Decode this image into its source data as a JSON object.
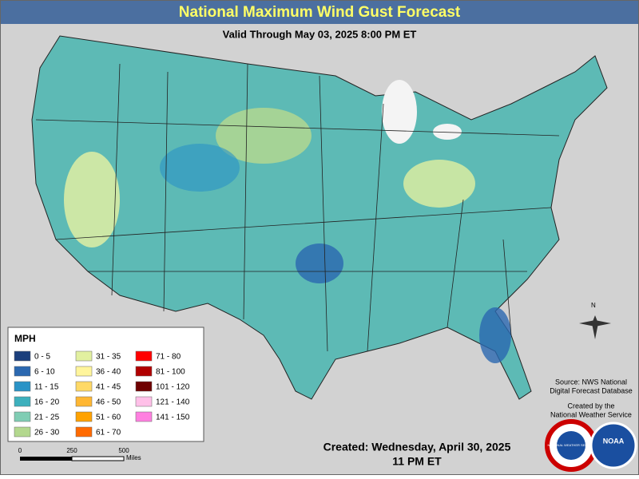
{
  "header": {
    "title": "National Maximum Wind Gust Forecast",
    "subtitle": "Valid Through May 03, 2025 8:00 PM ET"
  },
  "legend": {
    "title": "MPH",
    "items": [
      {
        "label": "0 - 5",
        "color": "#1b3f7c"
      },
      {
        "label": "6 - 10",
        "color": "#2b68b0"
      },
      {
        "label": "11 - 15",
        "color": "#2a93c6"
      },
      {
        "label": "16 - 20",
        "color": "#3db0bd"
      },
      {
        "label": "21 - 25",
        "color": "#80cdb4"
      },
      {
        "label": "26 - 30",
        "color": "#b3d88e"
      },
      {
        "label": "31 - 35",
        "color": "#e2f0a0"
      },
      {
        "label": "36 - 40",
        "color": "#fff59c"
      },
      {
        "label": "41 - 45",
        "color": "#ffd966"
      },
      {
        "label": "46 - 50",
        "color": "#ffb733"
      },
      {
        "label": "51 - 60",
        "color": "#ffa200"
      },
      {
        "label": "61 - 70",
        "color": "#ff6a00"
      },
      {
        "label": "71 - 80",
        "color": "#ff0000"
      },
      {
        "label": "81 - 100",
        "color": "#b00000"
      },
      {
        "label": "101 - 120",
        "color": "#6e0000"
      },
      {
        "label": "121 - 140",
        "color": "#ffc0e8"
      },
      {
        "label": "141 - 150",
        "color": "#ff80e0"
      }
    ]
  },
  "scale_bar": {
    "ticks": [
      0,
      250,
      500
    ],
    "unit": "Miles"
  },
  "compass": "N",
  "source": [
    "Source: NWS National",
    "Digital Forecast Database"
  ],
  "credit": [
    "Created by the",
    "National Weather Service"
  ],
  "created": [
    "Created: Wednesday, April 30, 2025",
    "11 PM ET"
  ],
  "logos": {
    "nws": "NATIONAL WEATHER SERVICE",
    "noaa": "NOAA"
  }
}
